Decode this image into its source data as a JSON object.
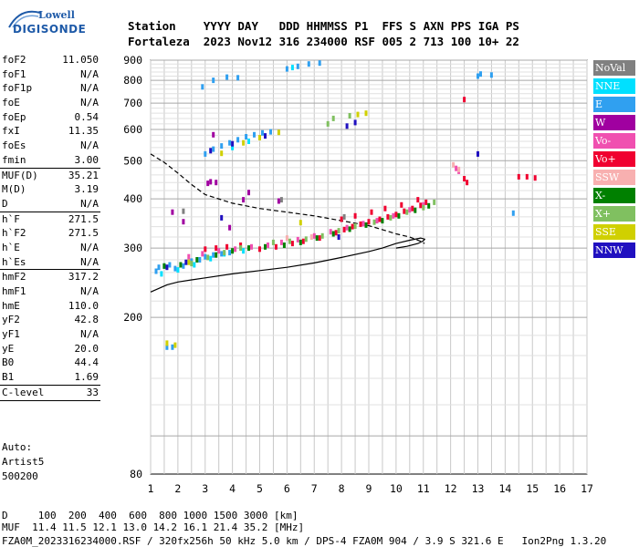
{
  "logo": {
    "line1": "Lowell",
    "line2": "DIGISONDE"
  },
  "header": {
    "row1": "Station    YYYY DAY   DDD HHMMSS P1  FFS S AXN PPS IGA PS",
    "row2": "Fortaleza  2023 Nov12 316 234000 RSF 005 2 713 100 10+ 22"
  },
  "params": [
    {
      "label": "foF2",
      "value": "11.050"
    },
    {
      "label": "foF1",
      "value": "N/A"
    },
    {
      "label": "foF1p",
      "value": "N/A"
    },
    {
      "label": "foE",
      "value": "N/A"
    },
    {
      "label": "foEp",
      "value": "0.54"
    },
    {
      "label": "fxI",
      "value": "11.35"
    },
    {
      "label": "foEs",
      "value": "N/A"
    },
    {
      "label": "fmin",
      "value": "3.00"
    },
    {
      "sep": true
    },
    {
      "label": "MUF(D)",
      "value": "35.21"
    },
    {
      "label": "M(D)",
      "value": "3.19"
    },
    {
      "label": "D",
      "value": "N/A"
    },
    {
      "sep": true
    },
    {
      "label": "h`F",
      "value": "271.5"
    },
    {
      "label": "h`F2",
      "value": "271.5"
    },
    {
      "label": "h`E",
      "value": "N/A"
    },
    {
      "label": "h`Es",
      "value": "N/A"
    },
    {
      "sep": true
    },
    {
      "label": "hmF2",
      "value": "317.2"
    },
    {
      "label": "hmF1",
      "value": "N/A"
    },
    {
      "label": "hmE",
      "value": "110.0"
    },
    {
      "label": "yF2",
      "value": "42.8"
    },
    {
      "label": "yF1",
      "value": "N/A"
    },
    {
      "label": "yE",
      "value": "20.0"
    },
    {
      "label": "B0",
      "value": "44.4"
    },
    {
      "label": "B1",
      "value": "1.69"
    },
    {
      "sep": true
    },
    {
      "label": "C-level",
      "value": "33"
    },
    {
      "sep": true
    }
  ],
  "auto": {
    "line1": "Auto:",
    "line2": "Artist5",
    "line3": "500200"
  },
  "legend": [
    {
      "label": "NoVal",
      "color": "#808080"
    },
    {
      "label": "NNE",
      "color": "#00e0ff"
    },
    {
      "label": "E",
      "color": "#30a0f0"
    },
    {
      "label": "W",
      "color": "#a000a0"
    },
    {
      "label": "Vo-",
      "color": "#f050b0"
    },
    {
      "label": "Vo+",
      "color": "#f00030"
    },
    {
      "label": "SSW",
      "color": "#f8b0b0"
    },
    {
      "label": "X-",
      "color": "#008000"
    },
    {
      "label": "X+",
      "color": "#80c060"
    },
    {
      "label": "SSE",
      "color": "#d0d000"
    },
    {
      "label": "NNW",
      "color": "#2010c0"
    }
  ],
  "footer": {
    "line1": "D     100  200  400  600  800 1000 1500 3000 [km]",
    "line2": "MUF  11.4 11.5 12.1 13.0 14.2 16.1 21.4 35.2 [MHz]",
    "line3": "FZA0M_2023316234000.RSF / 320fx256h 50 kHz 5.0 km / DPS-4 FZA0M 904 / 3.9 S 321.6 E   Ion2Png 1.3.20"
  },
  "chart_data": {
    "type": "scatter",
    "title": "",
    "xlabel": "",
    "ylabel": "",
    "xlim": [
      1,
      17
    ],
    "ylim": [
      80,
      900
    ],
    "y_scale": "log",
    "grid": true,
    "x_ticks": [
      1,
      2,
      3,
      4,
      5,
      6,
      7,
      8,
      9,
      10,
      11,
      12,
      13,
      14,
      15,
      16,
      17
    ],
    "y_ticks": [
      80,
      200,
      300,
      400,
      500,
      600,
      700,
      800,
      900
    ],
    "series": [
      {
        "name": "E",
        "color": "#30a0f0",
        "points": [
          [
            1.6,
            168
          ],
          [
            1.8,
            168
          ],
          [
            1.2,
            262
          ],
          [
            1.3,
            268
          ],
          [
            1.5,
            270
          ],
          [
            1.7,
            272
          ],
          [
            1.9,
            266
          ],
          [
            2.2,
            270
          ],
          [
            2.5,
            278
          ],
          [
            2.8,
            280
          ],
          [
            3.0,
            285
          ],
          [
            3.3,
            288
          ],
          [
            3.6,
            290
          ],
          [
            3.9,
            292
          ],
          [
            3.0,
            520
          ],
          [
            3.3,
            535
          ],
          [
            3.6,
            545
          ],
          [
            3.9,
            555
          ],
          [
            4.2,
            565
          ],
          [
            4.5,
            575
          ],
          [
            4.8,
            582
          ],
          [
            5.1,
            588
          ],
          [
            5.4,
            592
          ],
          [
            2.9,
            770
          ],
          [
            3.3,
            800
          ],
          [
            3.8,
            815
          ],
          [
            4.2,
            812
          ],
          [
            6.0,
            855
          ],
          [
            6.4,
            868
          ],
          [
            6.8,
            880
          ],
          [
            7.2,
            885
          ],
          [
            13.0,
            820
          ],
          [
            13.1,
            830
          ],
          [
            13.5,
            825
          ],
          [
            14.3,
            368
          ]
        ]
      },
      {
        "name": "NNE",
        "color": "#00e0ff",
        "points": [
          [
            1.4,
            258
          ],
          [
            2.0,
            264
          ],
          [
            2.6,
            272
          ],
          [
            3.2,
            282
          ],
          [
            3.7,
            290
          ],
          [
            4.4,
            295
          ],
          [
            6.2,
            862
          ],
          [
            4.0,
            540
          ],
          [
            4.6,
            560
          ]
        ]
      },
      {
        "name": "Vo+",
        "color": "#f00030",
        "points": [
          [
            3.0,
            298
          ],
          [
            3.4,
            300
          ],
          [
            3.8,
            302
          ],
          [
            4.3,
            305
          ],
          [
            5.0,
            298
          ],
          [
            5.6,
            302
          ],
          [
            6.2,
            308
          ],
          [
            6.6,
            312
          ],
          [
            7.2,
            318
          ],
          [
            7.8,
            328
          ],
          [
            8.1,
            334
          ],
          [
            8.4,
            340
          ],
          [
            8.7,
            345
          ],
          [
            9.0,
            350
          ],
          [
            9.4,
            355
          ],
          [
            9.7,
            360
          ],
          [
            10.0,
            365
          ],
          [
            10.3,
            372
          ],
          [
            10.6,
            378
          ],
          [
            10.9,
            385
          ],
          [
            11.1,
            392
          ],
          [
            8.0,
            355
          ],
          [
            8.5,
            362
          ],
          [
            9.1,
            370
          ],
          [
            9.6,
            378
          ],
          [
            10.2,
            386
          ],
          [
            10.8,
            398
          ],
          [
            12.5,
            715
          ],
          [
            12.5,
            450
          ],
          [
            12.6,
            440
          ],
          [
            14.5,
            455
          ],
          [
            14.8,
            455
          ],
          [
            15.1,
            452
          ]
        ]
      },
      {
        "name": "Vo-",
        "color": "#f050b0",
        "points": [
          [
            2.4,
            285
          ],
          [
            2.9,
            290
          ],
          [
            3.5,
            295
          ],
          [
            4.1,
            298
          ],
          [
            4.7,
            302
          ],
          [
            5.3,
            305
          ],
          [
            5.8,
            310
          ],
          [
            6.4,
            315
          ],
          [
            7.0,
            322
          ],
          [
            7.6,
            330
          ],
          [
            8.2,
            338
          ],
          [
            8.8,
            346
          ],
          [
            9.3,
            352
          ],
          [
            9.9,
            362
          ],
          [
            10.5,
            375
          ],
          [
            11.0,
            386
          ],
          [
            12.2,
            478
          ],
          [
            12.3,
            470
          ]
        ]
      },
      {
        "name": "W",
        "color": "#a000a0",
        "points": [
          [
            1.8,
            370
          ],
          [
            3.1,
            438
          ],
          [
            3.2,
            442
          ],
          [
            3.4,
            440
          ],
          [
            4.4,
            398
          ],
          [
            4.6,
            415
          ],
          [
            5.7,
            395
          ],
          [
            3.9,
            338
          ],
          [
            2.2,
            350
          ],
          [
            3.3,
            582
          ]
        ]
      },
      {
        "name": "X-",
        "color": "#008000",
        "points": [
          [
            1.5,
            270
          ],
          [
            2.1,
            272
          ],
          [
            2.7,
            280
          ],
          [
            3.4,
            288
          ],
          [
            4.0,
            295
          ],
          [
            4.6,
            300
          ],
          [
            5.2,
            302
          ],
          [
            5.9,
            305
          ],
          [
            6.5,
            310
          ],
          [
            7.1,
            318
          ],
          [
            7.7,
            326
          ],
          [
            8.3,
            335
          ],
          [
            8.9,
            343
          ],
          [
            9.5,
            352
          ],
          [
            10.1,
            362
          ],
          [
            10.7,
            374
          ],
          [
            11.2,
            384
          ]
        ]
      },
      {
        "name": "X+",
        "color": "#80c060",
        "points": [
          [
            2.5,
            274
          ],
          [
            3.1,
            284
          ],
          [
            3.7,
            292
          ],
          [
            4.3,
            300
          ],
          [
            5.5,
            310
          ],
          [
            6.1,
            312
          ],
          [
            6.7,
            316
          ],
          [
            7.3,
            322
          ],
          [
            7.9,
            332
          ],
          [
            8.5,
            341
          ],
          [
            9.2,
            349
          ],
          [
            9.8,
            358
          ],
          [
            10.4,
            370
          ],
          [
            11.0,
            380
          ],
          [
            11.4,
            392
          ],
          [
            7.5,
            620
          ],
          [
            7.7,
            640
          ],
          [
            8.3,
            650
          ]
        ]
      },
      {
        "name": "SSE",
        "color": "#d0d000",
        "points": [
          [
            1.6,
            172
          ],
          [
            1.9,
            170
          ],
          [
            2.4,
            276
          ],
          [
            3.6,
            522
          ],
          [
            4.4,
            555
          ],
          [
            5.0,
            572
          ],
          [
            5.7,
            590
          ],
          [
            6.5,
            348
          ],
          [
            8.6,
            655
          ],
          [
            8.9,
            660
          ]
        ]
      },
      {
        "name": "NNW",
        "color": "#2010c0",
        "points": [
          [
            1.6,
            268
          ],
          [
            2.3,
            276
          ],
          [
            3.2,
            530
          ],
          [
            4.0,
            552
          ],
          [
            5.2,
            578
          ],
          [
            7.9,
            320
          ],
          [
            8.2,
            612
          ],
          [
            8.5,
            625
          ],
          [
            3.6,
            358
          ],
          [
            13.0,
            520
          ]
        ]
      },
      {
        "name": "SSW",
        "color": "#f8b0b0",
        "points": [
          [
            6.0,
            318
          ],
          [
            6.9,
            320
          ],
          [
            12.1,
            488
          ],
          [
            12.3,
            475
          ]
        ]
      },
      {
        "name": "NoVal",
        "color": "#808080",
        "points": [
          [
            2.2,
            372
          ],
          [
            5.8,
            398
          ],
          [
            8.1,
            360
          ]
        ]
      }
    ],
    "lines": [
      {
        "style": "solid",
        "points": [
          [
            1.0,
            232
          ],
          [
            1.6,
            242
          ],
          [
            2.0,
            246
          ],
          [
            2.5,
            249
          ],
          [
            3.0,
            252
          ],
          [
            4.0,
            258
          ],
          [
            5.0,
            263
          ],
          [
            6.0,
            268
          ],
          [
            7.0,
            275
          ],
          [
            8.0,
            284
          ],
          [
            9.0,
            294
          ],
          [
            9.5,
            300
          ],
          [
            10.0,
            308
          ],
          [
            10.5,
            314
          ],
          [
            10.9,
            318
          ],
          [
            11.05,
            316
          ],
          [
            11.0,
            313
          ],
          [
            10.8,
            308
          ],
          [
            10.4,
            303
          ],
          [
            10.0,
            300
          ]
        ]
      },
      {
        "style": "dashed",
        "points": [
          [
            1.0,
            520
          ],
          [
            1.5,
            495
          ],
          [
            2.0,
            465
          ],
          [
            2.5,
            435
          ],
          [
            3.0,
            410
          ],
          [
            4.0,
            390
          ],
          [
            5.0,
            378
          ],
          [
            6.0,
            370
          ],
          [
            7.0,
            362
          ],
          [
            8.0,
            352
          ],
          [
            9.0,
            342
          ],
          [
            9.5,
            334
          ],
          [
            10.0,
            326
          ],
          [
            10.5,
            320
          ],
          [
            10.9,
            312
          ],
          [
            11.05,
            308
          ]
        ]
      }
    ]
  }
}
